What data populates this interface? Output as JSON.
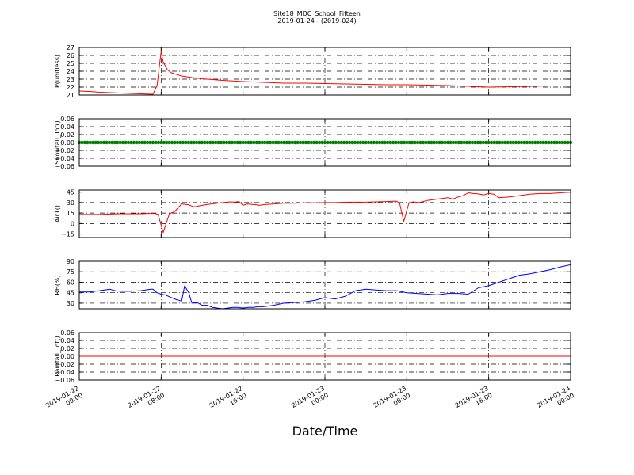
{
  "header": {
    "title": "Site18_MDC_School_Fifteen",
    "subtitle": "2019-01-24 - (2019-024)"
  },
  "chart_data": [
    {
      "type": "line",
      "ylabel": "P(unitless)",
      "color": "#ff0000",
      "ylim": [
        21,
        27
      ],
      "yticks": [
        21,
        22,
        23,
        24,
        25,
        26,
        27
      ],
      "ytick_labels": [
        "21",
        "22",
        "23",
        "24",
        "25",
        "26",
        "27"
      ],
      "grid": true,
      "x": [
        0,
        1,
        2,
        3,
        4,
        5,
        6,
        7,
        7.2,
        7.6,
        8,
        8.2,
        8.6,
        9,
        10,
        11,
        12,
        13,
        14,
        16,
        18,
        20,
        22,
        24,
        26,
        28,
        30,
        32,
        34,
        36,
        38,
        40,
        42,
        44,
        46,
        48
      ],
      "y": [
        21.5,
        21.45,
        21.35,
        21.3,
        21.25,
        21.2,
        21.15,
        21.1,
        21.1,
        22.2,
        26.5,
        25.2,
        24.2,
        23.8,
        23.4,
        23.2,
        23.05,
        22.95,
        22.85,
        22.7,
        22.6,
        22.5,
        22.5,
        22.45,
        22.4,
        22.35,
        22.3,
        22.3,
        22.25,
        22.2,
        22.1,
        22.0,
        22.05,
        22.1,
        22.15,
        22.15
      ]
    },
    {
      "type": "scatter",
      "ylabel": "Snowfall_Tot()",
      "color": "#008000",
      "ylim": [
        -0.06,
        0.06
      ],
      "yticks": [
        -0.06,
        -0.04,
        -0.02,
        0.0,
        0.02,
        0.04,
        0.06
      ],
      "ytick_labels": [
        "−0.06",
        "−0.04",
        "−0.02",
        "0.00",
        "0.02",
        "0.04",
        "0.06"
      ],
      "grid": true,
      "constant_value": 0.0
    },
    {
      "type": "line",
      "ylabel": "AirT()",
      "color": "#ff0000",
      "ylim": [
        -20,
        48
      ],
      "yticks": [
        -15,
        0,
        15,
        30,
        45
      ],
      "ytick_labels": [
        "−15",
        "0",
        "15",
        "30",
        "45"
      ],
      "grid": true,
      "x": [
        0,
        1,
        2,
        3,
        4,
        5,
        6,
        6.8,
        7.4,
        7.7,
        8.2,
        8.8,
        9.3,
        10,
        10.6,
        11,
        11.3,
        12,
        12.6,
        13.2,
        14,
        14.8,
        15.2,
        15.6,
        16,
        16.4,
        16.8,
        17.2,
        17.6,
        18,
        19,
        20,
        21,
        22,
        23,
        24,
        25,
        26,
        27,
        28,
        29,
        30,
        31,
        31.3,
        31.7,
        32.2,
        32.6,
        33.2,
        34,
        35,
        36,
        36.5,
        37,
        37.5,
        38,
        38.5,
        39,
        39.5,
        40,
        40.5,
        41,
        42,
        43,
        44,
        45,
        46,
        47,
        48
      ],
      "y": [
        13,
        13,
        13,
        13.5,
        14,
        14,
        14,
        14.5,
        14.5,
        13,
        -13,
        14,
        17,
        28,
        27,
        25,
        24,
        26,
        27.5,
        28.5,
        30,
        31,
        30.5,
        31.5,
        26,
        28,
        27.5,
        27,
        26,
        27,
        28,
        29,
        29,
        29.5,
        29.5,
        30,
        30,
        30.5,
        30.5,
        30.5,
        31,
        31.5,
        32,
        29,
        3,
        29,
        31,
        30,
        33,
        35,
        37,
        35,
        38,
        40,
        44,
        43,
        42.5,
        41,
        43,
        42,
        37,
        38,
        40,
        42,
        43,
        43,
        44,
        45
      ]
    },
    {
      "type": "line",
      "ylabel": "RH(%)",
      "color": "#0000ff",
      "ylim": [
        22,
        90
      ],
      "yticks": [
        30,
        45,
        60,
        75,
        90
      ],
      "ytick_labels": [
        "30",
        "45",
        "60",
        "75",
        "90"
      ],
      "grid": true,
      "x": [
        0,
        1,
        2,
        3,
        3.5,
        4,
        5,
        6,
        7,
        7.2,
        7.6,
        8,
        8.4,
        9,
        9.5,
        10,
        10.3,
        10.7,
        11,
        11.5,
        12,
        12.5,
        13,
        13.5,
        14,
        14.5,
        15,
        15.5,
        16,
        16.5,
        17,
        17.5,
        18,
        18.5,
        19,
        20,
        21,
        22,
        23,
        24,
        25,
        26,
        27,
        28,
        29,
        30,
        31,
        32,
        33,
        34,
        35,
        36,
        37,
        38,
        39,
        40,
        41,
        42,
        43,
        44,
        45,
        46,
        47,
        48
      ],
      "y": [
        46,
        46,
        48,
        50,
        48,
        47,
        47,
        48,
        50,
        50,
        45,
        43,
        42,
        38,
        35,
        33,
        55,
        45,
        30,
        31,
        27,
        27,
        24,
        23,
        22,
        23,
        24,
        24,
        23,
        24,
        24,
        25,
        25,
        26,
        27,
        30,
        31,
        32,
        34,
        38,
        36,
        40,
        48,
        50,
        49,
        48,
        48,
        45,
        44,
        43,
        42,
        44,
        44,
        43,
        52,
        55,
        60,
        65,
        70,
        72,
        75,
        78,
        82,
        85
      ]
    },
    {
      "type": "line",
      "ylabel": "Rainfall_Tot()",
      "color": "#ff0000",
      "ylim": [
        -0.06,
        0.06
      ],
      "yticks": [
        -0.06,
        -0.04,
        -0.02,
        0.0,
        0.02,
        0.04,
        0.06
      ],
      "ytick_labels": [
        "−0.06",
        "−0.04",
        "−0.02",
        "0.00",
        "0.02",
        "0.04",
        "0.06"
      ],
      "grid": true,
      "constant_value": 0.0
    }
  ],
  "x_axis": {
    "label": "Date/Time",
    "range_hours": [
      0,
      48
    ],
    "ticks_hours": [
      0,
      8,
      16,
      24,
      32,
      40,
      48
    ],
    "tick_labels": [
      [
        "2019-01-22",
        "00:00"
      ],
      [
        "2019-01-22",
        "08:00"
      ],
      [
        "2019-01-22",
        "16:00"
      ],
      [
        "2019-01-23",
        "00:00"
      ],
      [
        "2019-01-23",
        "08:00"
      ],
      [
        "2019-01-23",
        "16:00"
      ],
      [
        "2019-01-24",
        "00:00"
      ]
    ]
  }
}
